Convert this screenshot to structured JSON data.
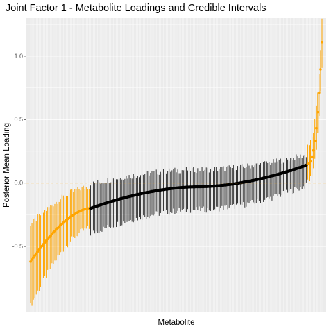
{
  "chart_data": {
    "type": "errorbar",
    "title": "Joint Factor 1 - Metabolite Loadings and Credible Intervals",
    "xlabel": "Metabolite",
    "ylabel": "Posterior Mean Loading",
    "ylim": [
      -1.02,
      1.3
    ],
    "yticks": [
      -0.5,
      0.0,
      0.5,
      1.0
    ],
    "ytick_labels": [
      "-0.5",
      "0.0",
      "0.5",
      "1.0"
    ],
    "x_tick_labels_shown": false,
    "grid": true,
    "n_metabolites": 205,
    "reference_line": {
      "y": 0.0,
      "style": "dashed",
      "color": "#FFA500"
    },
    "colors": {
      "highlighted": "#FFA500",
      "not_highlighted": "#000000",
      "error_bar_not_highlighted": "#333333",
      "panel_background": "#EBEBEB",
      "grid": "#FFFFFF"
    },
    "legend": "none",
    "series": [
      {
        "role": "lower tail (highlighted)",
        "color": "#FFA500",
        "x_range": [
          1,
          42
        ],
        "mean_start": -0.62,
        "mean_end": -0.2,
        "lower_start": -0.97,
        "lower_end": -0.36,
        "upper_start": -0.33,
        "upper_end": -0.03
      },
      {
        "role": "middle (not highlighted)",
        "color": "#000000",
        "x_range": [
          43,
          194
        ],
        "mean_start": -0.2,
        "mean_end": 0.14,
        "lower_start": -0.4,
        "lower_end": -0.02,
        "upper_start": -0.01,
        "upper_end": 0.22
      },
      {
        "role": "upper tail (highlighted)",
        "color": "#FFA500",
        "x_range": [
          195,
          205
        ],
        "mean_start": 0.15,
        "mean_end": 1.11,
        "lower_start": 0.02,
        "lower_end": 0.9,
        "upper_start": 0.3,
        "upper_end": 1.28
      }
    ]
  }
}
